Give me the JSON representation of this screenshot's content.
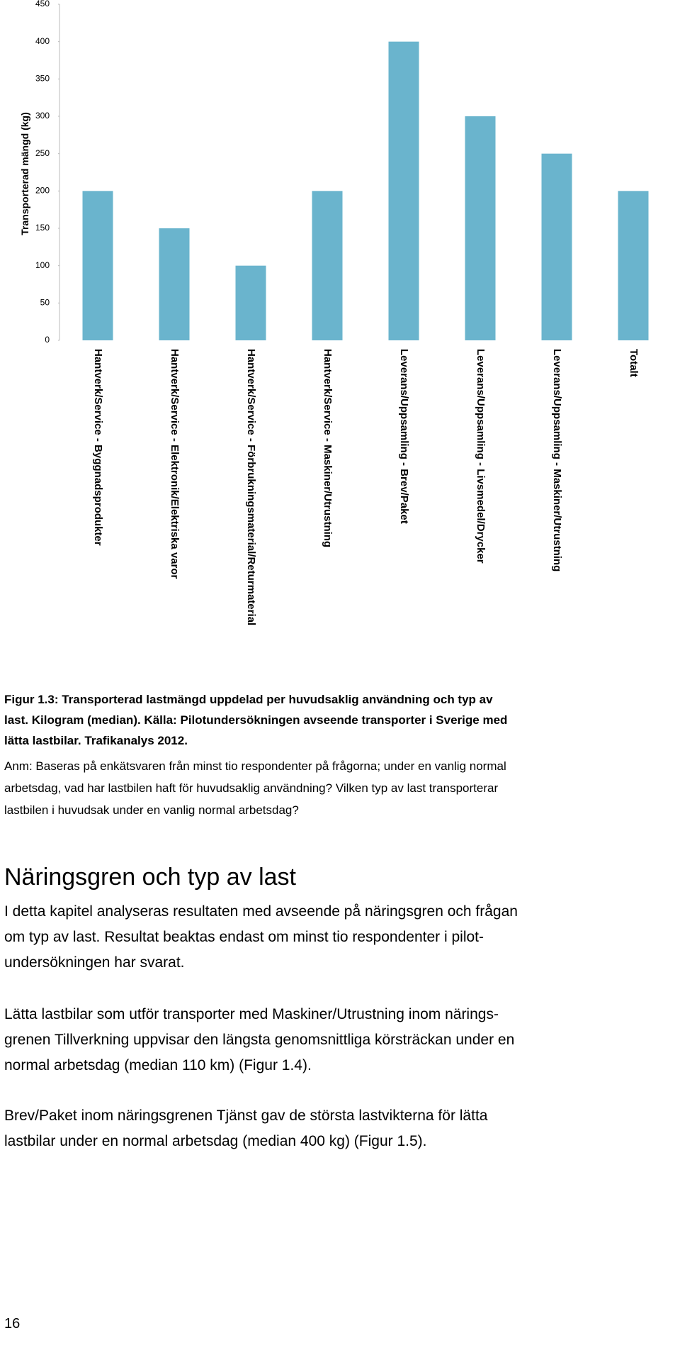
{
  "chart_data": {
    "type": "bar",
    "y_label": "Transporterad mängd (kg)",
    "categories": [
      "Hantverk/Service - Byggnadsprodukter",
      "Hantverk/Service - Elektronik/Elektriska varor",
      "Hantverk/Service - Förbrukningsmaterial/Returmaterial",
      "Hantverk/Service - Maskiner/Utrustning",
      "Leverans/Uppsamling - Brev/Paket",
      "Leverans/Uppsamling - Livsmedel/Drycker",
      "Leverans/Uppsamling - Maskiner/Utrustning",
      "Totalt"
    ],
    "values": [
      200,
      150,
      100,
      200,
      400,
      300,
      250,
      200
    ],
    "color": "#6ab4cd",
    "ylim": [
      0,
      450
    ],
    "yticks": [
      0,
      50,
      100,
      150,
      200,
      250,
      300,
      350,
      400,
      450
    ]
  },
  "caption": [
    "Figur 1.3: Transporterad lastmängd uppdelad per huvudsaklig användning och typ av",
    "last. Kilogram (median). Källa: Pilotundersökningen avseende transporter i Sverige med",
    "lätta lastbilar. Trafikanalys 2012."
  ],
  "note": [
    "Anm: Baseras på enkätsvaren från minst tio respondenter på frågorna; under en vanlig normal",
    "arbetsdag, vad har lastbilen haft för huvudsaklig användning? Vilken typ av last transporterar",
    "lastbilen i huvudsak under en vanlig normal arbetsdag?"
  ],
  "heading": "Näringsgren och typ av last",
  "paragraphs": [
    [
      "I detta kapitel analyseras resultaten med avseende på näringsgren och frågan",
      "om typ av last. Resultat beaktas endast om minst tio respondenter i pilot-",
      "undersökningen har svarat."
    ],
    [
      "Lätta lastbilar som utför transporter med Maskiner/Utrustning inom närings-",
      "grenen Tillverkning uppvisar den längsta genomsnittliga körsträckan under en",
      "normal arbetsdag (median 110 km) (Figur 1.4)."
    ],
    [
      "Brev/Paket inom näringsgrenen Tjänst gav de största lastvikterna för lätta",
      "lastbilar under en normal arbetsdag (median 400 kg) (Figur 1.5)."
    ]
  ],
  "page_number": "16"
}
